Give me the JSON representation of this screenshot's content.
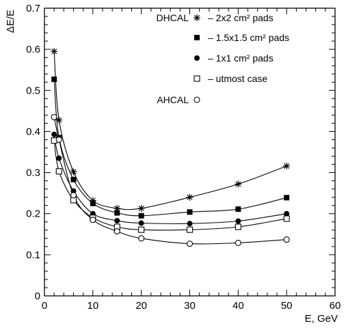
{
  "chart_data": {
    "type": "scatter",
    "xlabel": "E, GeV",
    "ylabel": "ΔE/E",
    "xlim": [
      0,
      60
    ],
    "ylim": [
      0,
      0.7
    ],
    "xticks": [
      0,
      10,
      20,
      30,
      40,
      50,
      60
    ],
    "xtick_labels": [
      "0",
      "10",
      "20",
      "30",
      "40",
      "50",
      "60"
    ],
    "yticks": [
      0,
      0.1,
      0.2,
      0.3,
      0.4,
      0.5,
      0.6,
      0.7
    ],
    "ytick_labels": [
      "0",
      "0.1",
      "0.2",
      "0.3",
      "0.4",
      "0.5",
      "0.6",
      "0.7"
    ],
    "grid": false,
    "legend_position": "top-right",
    "legend_groups": [
      {
        "label": "DHCAL",
        "first_series": 0
      },
      {
        "label": "AHCAL",
        "first_series": 4
      }
    ],
    "series": [
      {
        "name": "– 2x2 cm² pads",
        "marker": "star",
        "x": [
          2,
          3,
          6,
          10,
          15,
          20,
          30,
          40,
          50
        ],
        "y": [
          0.595,
          0.428,
          0.302,
          0.232,
          0.213,
          0.213,
          0.24,
          0.272,
          0.316
        ]
      },
      {
        "name": "– 1.5x1.5 cm² pads",
        "marker": "filled-square",
        "x": [
          2,
          3,
          6,
          10,
          15,
          20,
          30,
          40,
          50
        ],
        "y": [
          0.527,
          0.385,
          0.283,
          0.225,
          0.202,
          0.195,
          0.204,
          0.211,
          0.239
        ]
      },
      {
        "name": "– 1x1 cm² pads",
        "marker": "filled-circle",
        "x": [
          2,
          3,
          6,
          10,
          15,
          20,
          30,
          40,
          50
        ],
        "y": [
          0.393,
          0.335,
          0.255,
          0.2,
          0.183,
          0.177,
          0.176,
          0.182,
          0.2
        ]
      },
      {
        "name": "– utmost case",
        "marker": "open-square",
        "x": [
          2,
          3,
          6,
          10,
          15,
          20,
          30,
          40,
          50
        ],
        "y": [
          0.378,
          0.303,
          0.233,
          0.19,
          0.168,
          0.161,
          0.161,
          0.168,
          0.188
        ]
      },
      {
        "name": "",
        "marker": "open-circle",
        "x": [
          2,
          3,
          6,
          10,
          15,
          20,
          30,
          40,
          50
        ],
        "y": [
          0.435,
          0.38,
          0.245,
          0.185,
          0.157,
          0.14,
          0.127,
          0.129,
          0.137
        ]
      }
    ]
  }
}
